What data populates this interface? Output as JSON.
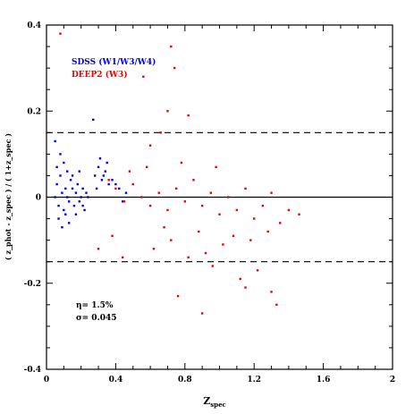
{
  "chart_data": {
    "type": "scatter",
    "xlim": [
      0,
      2
    ],
    "ylim": [
      -0.4,
      0.4
    ],
    "x_ticks": [
      0,
      0.4,
      0.8,
      1.2,
      1.6,
      2
    ],
    "x_tick_labels": [
      "0",
      "0.4",
      "0.8",
      "1.2",
      "1.6",
      "2"
    ],
    "y_ticks": [
      -0.4,
      -0.2,
      0,
      0.2,
      0.4
    ],
    "y_tick_labels": [
      "-0.4",
      "-0.2",
      "0",
      "0.2",
      "0.4"
    ],
    "xlabel_main": "Z",
    "xlabel_sub": "spec",
    "ylabel": "( z_phot - z_spec ) / ( 1+z_spec )",
    "reference_lines": [
      {
        "y": 0,
        "style": "solid"
      },
      {
        "y": 0.15,
        "style": "dashed"
      },
      {
        "y": -0.15,
        "style": "dashed"
      }
    ],
    "legend_position": "top-left",
    "series": [
      {
        "name": "SDSS (W1/W3/W4)",
        "color": "#0000ee",
        "points": [
          [
            0.05,
            0.0
          ],
          [
            0.06,
            0.03
          ],
          [
            0.07,
            -0.02
          ],
          [
            0.08,
            0.05
          ],
          [
            0.09,
            0.01
          ],
          [
            0.1,
            -0.03
          ],
          [
            0.11,
            0.02
          ],
          [
            0.12,
            0.0
          ],
          [
            0.13,
            -0.01
          ],
          [
            0.14,
            0.04
          ],
          [
            0.15,
            0.02
          ],
          [
            0.16,
            -0.02
          ],
          [
            0.17,
            0.01
          ],
          [
            0.18,
            0.03
          ],
          [
            0.19,
            -0.01
          ],
          [
            0.2,
            0.0
          ],
          [
            0.21,
            0.02
          ],
          [
            0.22,
            -0.03
          ],
          [
            0.23,
            0.01
          ],
          [
            0.24,
            0.0
          ],
          [
            0.06,
            0.07
          ],
          [
            0.08,
            0.1
          ],
          [
            0.1,
            0.08
          ],
          [
            0.12,
            0.06
          ],
          [
            0.07,
            -0.05
          ],
          [
            0.09,
            -0.07
          ],
          [
            0.11,
            -0.04
          ],
          [
            0.13,
            -0.06
          ],
          [
            0.05,
            0.13
          ],
          [
            0.28,
            0.05
          ],
          [
            0.3,
            0.07
          ],
          [
            0.32,
            0.04
          ],
          [
            0.34,
            0.06
          ],
          [
            0.36,
            0.03
          ],
          [
            0.29,
            0.02
          ],
          [
            0.31,
            0.09
          ],
          [
            0.33,
            0.05
          ],
          [
            0.35,
            0.08
          ],
          [
            0.38,
            0.04
          ],
          [
            0.27,
            0.18
          ],
          [
            0.4,
            0.03
          ],
          [
            0.42,
            0.02
          ],
          [
            0.44,
            -0.01
          ],
          [
            0.46,
            0.01
          ],
          [
            0.15,
            0.05
          ],
          [
            0.17,
            -0.04
          ],
          [
            0.19,
            0.06
          ],
          [
            0.21,
            -0.02
          ]
        ]
      },
      {
        "name": "DEEP2 (W3)",
        "color": "#ee0000",
        "points": [
          [
            0.08,
            0.38
          ],
          [
            0.72,
            0.35
          ],
          [
            0.74,
            0.3
          ],
          [
            0.56,
            0.28
          ],
          [
            0.7,
            0.2
          ],
          [
            0.82,
            0.19
          ],
          [
            0.66,
            0.15
          ],
          [
            0.6,
            0.12
          ],
          [
            0.36,
            0.04
          ],
          [
            0.4,
            0.02
          ],
          [
            0.45,
            -0.01
          ],
          [
            0.5,
            0.03
          ],
          [
            0.55,
            0.0
          ],
          [
            0.6,
            -0.02
          ],
          [
            0.65,
            0.01
          ],
          [
            0.7,
            -0.03
          ],
          [
            0.75,
            0.02
          ],
          [
            0.8,
            -0.01
          ],
          [
            0.85,
            0.04
          ],
          [
            0.9,
            -0.02
          ],
          [
            0.95,
            0.01
          ],
          [
            1.0,
            -0.04
          ],
          [
            1.05,
            0.0
          ],
          [
            1.1,
            -0.03
          ],
          [
            1.15,
            0.02
          ],
          [
            1.2,
            -0.05
          ],
          [
            1.25,
            -0.02
          ],
          [
            1.3,
            0.01
          ],
          [
            1.35,
            -0.06
          ],
          [
            1.4,
            -0.03
          ],
          [
            1.46,
            -0.04
          ],
          [
            0.48,
            0.06
          ],
          [
            0.58,
            0.07
          ],
          [
            0.68,
            -0.07
          ],
          [
            0.78,
            0.08
          ],
          [
            0.88,
            -0.08
          ],
          [
            0.98,
            0.07
          ],
          [
            1.08,
            -0.09
          ],
          [
            1.18,
            -0.1
          ],
          [
            1.28,
            -0.08
          ],
          [
            0.62,
            -0.12
          ],
          [
            0.72,
            -0.1
          ],
          [
            0.82,
            -0.14
          ],
          [
            0.92,
            -0.13
          ],
          [
            1.02,
            -0.11
          ],
          [
            0.44,
            -0.14
          ],
          [
            0.3,
            -0.12
          ],
          [
            0.96,
            -0.16
          ],
          [
            1.12,
            -0.19
          ],
          [
            1.15,
            -0.21
          ],
          [
            1.22,
            -0.17
          ],
          [
            1.3,
            -0.22
          ],
          [
            1.33,
            -0.25
          ],
          [
            0.9,
            -0.27
          ],
          [
            0.76,
            -0.23
          ],
          [
            0.38,
            -0.09
          ]
        ]
      }
    ],
    "annotations": [
      {
        "label": "η= 1.5%"
      },
      {
        "label": "σ= 0.045"
      }
    ]
  }
}
